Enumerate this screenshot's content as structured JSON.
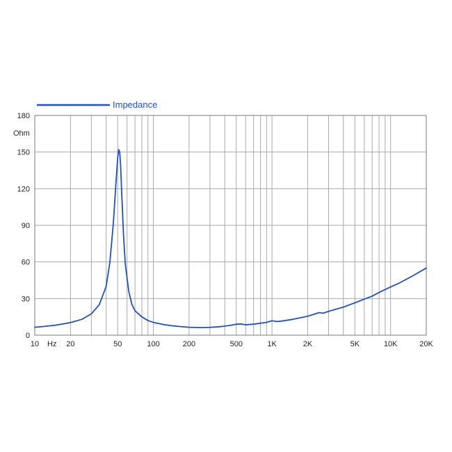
{
  "chart_data": {
    "type": "line",
    "title": "",
    "xlabel": "",
    "ylabel": "Ohm",
    "x_unit_label": "Hz",
    "x_scale": "log",
    "xlim": [
      10,
      20000
    ],
    "ylim": [
      0,
      180
    ],
    "grid": true,
    "legend": "top-left",
    "series": [
      {
        "name": "Impedance",
        "color": "#1f4fd1",
        "x": [
          10,
          12,
          15,
          18,
          20,
          25,
          30,
          35,
          40,
          43,
          46,
          48,
          50,
          51,
          52,
          53,
          54,
          56,
          58,
          62,
          66,
          70,
          80,
          90,
          100,
          120,
          150,
          200,
          250,
          300,
          350,
          400,
          450,
          500,
          550,
          600,
          700,
          800,
          900,
          1000,
          1100,
          1200,
          1500,
          2000,
          2500,
          2700,
          3000,
          4000,
          5000,
          6000,
          7000,
          8000,
          10000,
          12000,
          15000,
          20000
        ],
        "y": [
          6.5,
          7.2,
          8.2,
          9.5,
          10.3,
          13,
          17.5,
          25,
          40,
          60,
          92,
          120,
          145,
          152,
          150,
          138,
          118,
          82,
          58,
          36,
          25,
          20,
          15,
          12,
          10.5,
          8.8,
          7.5,
          6.5,
          6.2,
          6.4,
          6.8,
          7.4,
          8.1,
          9,
          9.2,
          8.5,
          9,
          9.8,
          10.5,
          11.8,
          11.2,
          11.5,
          13,
          15.5,
          18.5,
          18,
          19.5,
          23,
          26.5,
          29.5,
          32,
          35,
          39.5,
          43,
          48,
          55
        ]
      }
    ],
    "x_ticks": [
      {
        "value": 10,
        "label": "10"
      },
      {
        "value": 20,
        "label": "20"
      },
      {
        "value": 50,
        "label": "50"
      },
      {
        "value": 100,
        "label": "100"
      },
      {
        "value": 200,
        "label": "200"
      },
      {
        "value": 500,
        "label": "500"
      },
      {
        "value": 1000,
        "label": "1K"
      },
      {
        "value": 2000,
        "label": "2K"
      },
      {
        "value": 5000,
        "label": "5K"
      },
      {
        "value": 10000,
        "label": "10K"
      },
      {
        "value": 20000,
        "label": "20K"
      }
    ],
    "y_ticks": [
      0,
      30,
      60,
      90,
      120,
      150,
      180
    ]
  }
}
